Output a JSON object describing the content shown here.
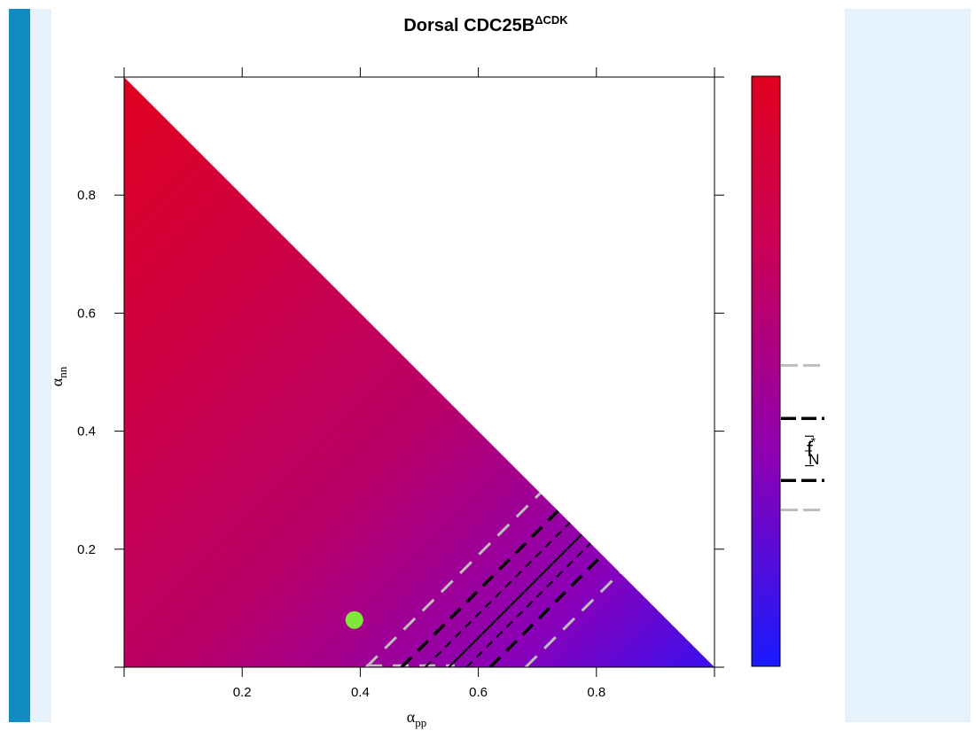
{
  "page": {
    "left_bar_color": "#128bc3",
    "left_light_color": "#e6f2fb",
    "right_panel_color": "#e6f2fb"
  },
  "chart_data": {
    "type": "heatmap",
    "title_main": "Dorsal CDC25B",
    "title_superscript": "ΔCDK",
    "xlabel_main": "α",
    "xlabel_sub": "pp",
    "ylabel_main": "α",
    "ylabel_sub": "nn",
    "xlim": [
      0,
      1
    ],
    "ylim": [
      0,
      1
    ],
    "x_ticks": [
      {
        "value": 0.2,
        "label": "0.2"
      },
      {
        "value": 0.4,
        "label": "0.4"
      },
      {
        "value": 0.6,
        "label": "0.6"
      },
      {
        "value": 0.8,
        "label": "0.8"
      }
    ],
    "y_ticks": [
      {
        "value": 0.2,
        "label": "0.2"
      },
      {
        "value": 0.4,
        "label": "0.4"
      },
      {
        "value": 0.6,
        "label": "0.6"
      },
      {
        "value": 0.8,
        "label": "0.8"
      }
    ],
    "domain": "α_pp + α_nn ≤ 1",
    "colors": {
      "high": "#e0001e",
      "mid": "#8c00b4",
      "low": "#1a1aff",
      "gray_dash": "#bdbdbd",
      "black": "#000000",
      "point": "#7fe83a"
    },
    "point": {
      "x": 0.39,
      "y": 0.08
    },
    "contours": [
      {
        "id": "gray-upper",
        "intercept": 0.41,
        "style": "gray-long"
      },
      {
        "id": "black-thick-upper",
        "intercept": 0.47,
        "style": "black-thick"
      },
      {
        "id": "black-thin-upper",
        "intercept": 0.51,
        "style": "black-thin"
      },
      {
        "id": "solid-center",
        "intercept": 0.55,
        "style": "black-solid"
      },
      {
        "id": "black-thin-lower",
        "intercept": 0.58,
        "style": "black-thin"
      },
      {
        "id": "black-thick-lower",
        "intercept": 0.62,
        "style": "black-thick"
      },
      {
        "id": "gray-lower",
        "intercept": 0.68,
        "style": "gray-long"
      }
    ],
    "colorbar": {
      "label_main": "f",
      "label_sup": "*",
      "label_sub": "N",
      "bottom_color": "#1a1aff",
      "top_color": "#e0001e",
      "markers": [
        {
          "id": "gray-top",
          "value": 0.51,
          "style": "gray-long"
        },
        {
          "id": "black-thick-top",
          "value": 0.42,
          "style": "black-thick"
        },
        {
          "id": "black-thin-top",
          "value": 0.39,
          "style": "black-thin-short"
        },
        {
          "id": "solid-center",
          "value": 0.365,
          "style": "black-solid-short"
        },
        {
          "id": "black-thin-bottom",
          "value": 0.34,
          "style": "black-thin-short"
        },
        {
          "id": "black-thick-bottom",
          "value": 0.315,
          "style": "black-thick"
        },
        {
          "id": "gray-bottom",
          "value": 0.265,
          "style": "gray-long"
        }
      ]
    }
  }
}
